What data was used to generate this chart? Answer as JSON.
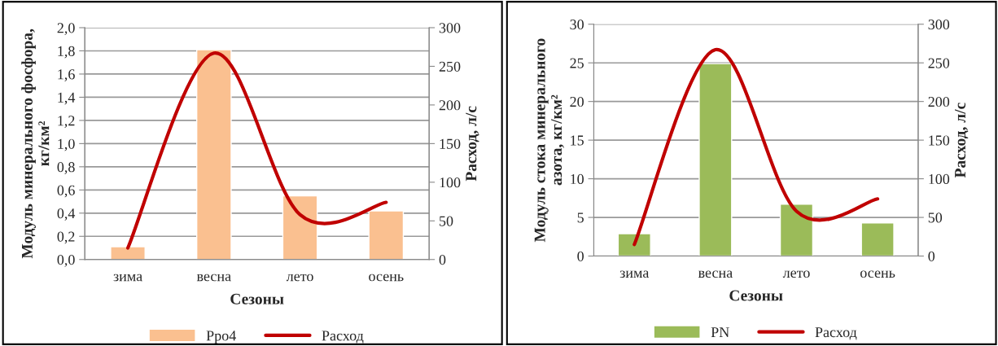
{
  "chart_data": [
    {
      "type": "bar",
      "xlabel": "Сезоны",
      "ylabel": "Модуль минерального фосфора,\nкг/км²",
      "y2label": "Расход, л/с",
      "categories": [
        "зима",
        "весна",
        "лето",
        "осень"
      ],
      "series": [
        {
          "name": "Рро4",
          "color": "#fac090",
          "values": [
            0.11,
            1.81,
            0.55,
            0.42
          ]
        },
        {
          "name": "Расход",
          "type": "line",
          "axis": "y2",
          "color": "#c00000",
          "values": [
            15,
            267,
            58,
            74
          ]
        }
      ],
      "ylim": [
        0,
        2.0
      ],
      "yticks": [
        {
          "value": 0,
          "label": "0,0"
        },
        {
          "value": 0.2,
          "label": "0,2"
        },
        {
          "value": 0.4,
          "label": "0,4"
        },
        {
          "value": 0.6,
          "label": "0,6"
        },
        {
          "value": 0.8,
          "label": "0,8"
        },
        {
          "value": 1.0,
          "label": "1,0"
        },
        {
          "value": 1.2,
          "label": "1,2"
        },
        {
          "value": 1.4,
          "label": "1,4"
        },
        {
          "value": 1.6,
          "label": "1,6"
        },
        {
          "value": 1.8,
          "label": "1,8"
        },
        {
          "value": 2.0,
          "label": "2,0"
        }
      ],
      "y2lim": [
        0,
        300
      ],
      "y2ticks": [
        0,
        50,
        100,
        150,
        200,
        250,
        300
      ],
      "grid": "y",
      "legend": "bottom",
      "line_style": "solid"
    },
    {
      "type": "bar",
      "xlabel": "Сезоны",
      "ylabel": "Модуль стока минерального\nазота, кг/км²",
      "y2label": "Расход, л/с",
      "categories": [
        "зима",
        "весна",
        "лето",
        "осень"
      ],
      "series": [
        {
          "name": "PN",
          "color": "#9bbb59",
          "values": [
            2.9,
            24.9,
            6.7,
            4.3
          ]
        },
        {
          "name": "Расход",
          "type": "line",
          "axis": "y2",
          "color": "#c00000",
          "values": [
            15,
            267,
            58,
            74
          ]
        }
      ],
      "ylim": [
        0,
        30
      ],
      "yticks": [
        0,
        5,
        10,
        15,
        20,
        25,
        30
      ],
      "y2lim": [
        0,
        300
      ],
      "y2ticks": [
        0,
        50,
        100,
        150,
        200,
        250,
        300
      ],
      "grid": "y",
      "legend": "bottom",
      "line_style": "solid"
    }
  ]
}
